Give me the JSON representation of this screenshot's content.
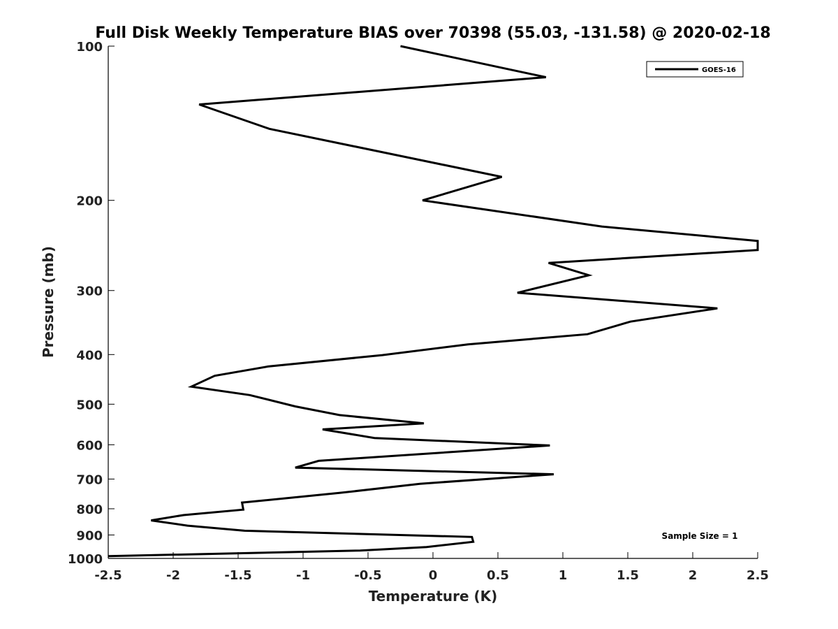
{
  "chart_data": {
    "type": "line",
    "title": "Full Disk Weekly Temperature BIAS over 70398 (55.03, -131.58) @ 2020-02-18",
    "xlabel": "Temperature (K)",
    "ylabel": "Pressure (mb)",
    "xlim": [
      -2.5,
      2.5
    ],
    "ylim": [
      1000,
      100
    ],
    "yscale": "log",
    "xticks": [
      -2.5,
      -2,
      -1.5,
      -1,
      -0.5,
      0,
      0.5,
      1,
      1.5,
      2,
      2.5
    ],
    "xtick_labels": [
      "-2.5",
      "-2",
      "-1.5",
      "-1",
      "-0.5",
      "0",
      "0.5",
      "1",
      "1.5",
      "2",
      "2.5"
    ],
    "yticks": [
      100,
      200,
      300,
      400,
      500,
      600,
      700,
      800,
      900,
      1000
    ],
    "ytick_labels": [
      "100",
      "200",
      "300",
      "400",
      "500",
      "600",
      "700",
      "800",
      "900",
      "1000"
    ],
    "grid": false,
    "legend_position": "top-right",
    "series": [
      {
        "name": "GOES-16",
        "color": "#000000",
        "x": [
          -0.25,
          0.87,
          -1.8,
          -1.26,
          0.53,
          -0.08,
          1.3,
          2.5,
          2.5,
          0.89,
          1.2,
          0.65,
          2.19,
          1.52,
          1.19,
          0.27,
          -0.39,
          -1.27,
          -1.68,
          -1.86,
          -1.41,
          -1.06,
          -0.72,
          -0.07,
          -0.85,
          -0.45,
          0.9,
          -0.88,
          -1.06,
          0.93,
          -0.1,
          -0.72,
          -1.47,
          -1.46,
          -1.92,
          -2.17,
          -1.89,
          -1.45,
          0.3,
          0.31,
          -0.05,
          -0.56,
          -2.5
        ],
        "y": [
          100,
          115,
          130,
          145,
          180,
          200,
          225,
          240,
          250,
          265,
          280,
          303,
          325,
          345,
          365,
          382,
          401,
          422,
          440,
          462,
          480,
          505,
          525,
          545,
          560,
          582,
          602,
          645,
          665,
          685,
          715,
          745,
          778,
          803,
          823,
          843,
          863,
          883,
          908,
          928,
          950,
          965,
          990
        ]
      }
    ],
    "annotation": "Sample Size = 1"
  }
}
